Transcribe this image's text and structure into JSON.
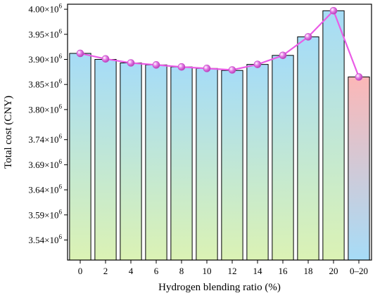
{
  "chart_data": {
    "type": "bar",
    "xlabel": "Hydrogen blending ratio (%)",
    "ylabel": "Total cost (CNY)",
    "categories": [
      "0",
      "2",
      "4",
      "6",
      "8",
      "10",
      "12",
      "14",
      "16",
      "18",
      "20",
      "0–20"
    ],
    "values": [
      3912000.0,
      3900000.0,
      3893000.0,
      3889000.0,
      3885000.0,
      3882000.0,
      3878000.0,
      3890000.0,
      3908000.0,
      3945000.0,
      3997000.0,
      3865000.0
    ],
    "line_values": [
      3912000.0,
      3901000.0,
      3893000.0,
      3889000.0,
      3885000.0,
      3882000.0,
      3879000.0,
      3890000.0,
      3908000.0,
      3945000.0,
      3997000.0,
      3865000.0
    ],
    "ylim": [
      3500000.0,
      4010000.0
    ],
    "yticks": [
      3540000.0,
      3590000.0,
      3640000.0,
      3690000.0,
      3740000.0,
      3800000.0,
      3850000.0,
      3900000.0,
      3950000.0,
      4000000.0
    ],
    "ytick_mantissas": [
      "3.54",
      "3.59",
      "3.64",
      "3.69",
      "3.74",
      "3.80",
      "3.85",
      "3.90",
      "3.95",
      "4.00"
    ],
    "ytick_suffix": "×10",
    "ytick_exponent": "6",
    "grid": false,
    "colors": {
      "bar_top": "#a6dcf7",
      "bar_bottom": "#dbf2b4",
      "highlight_bar_top": "#fcb7b7",
      "highlight_bar_bottom": "#a6dcf7",
      "bar_edge": "#000000",
      "line": "#ea5ce6",
      "marker": "#e47ae6"
    }
  }
}
